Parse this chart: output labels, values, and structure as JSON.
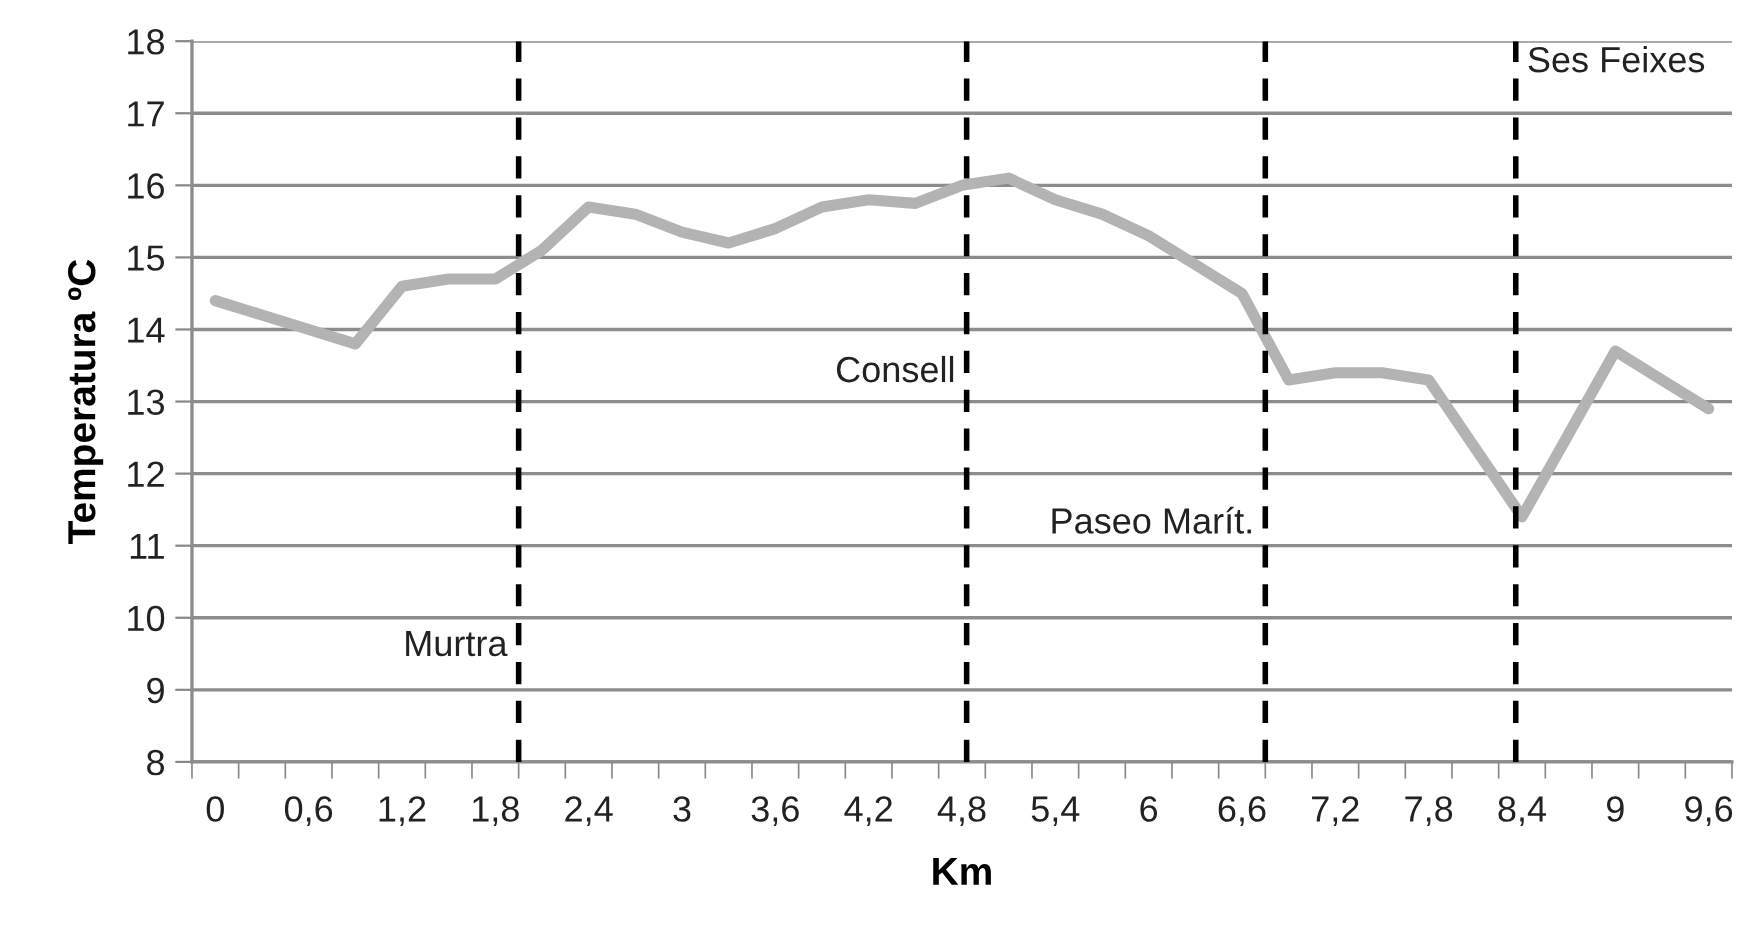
{
  "chart_data": {
    "type": "line",
    "xlabel": "Km",
    "ylabel": "Temperatura ºC",
    "x": [
      0,
      0.3,
      0.6,
      0.9,
      1.2,
      1.5,
      1.8,
      2.1,
      2.4,
      2.7,
      3.0,
      3.3,
      3.6,
      3.9,
      4.2,
      4.5,
      4.8,
      5.1,
      5.4,
      5.7,
      6.0,
      6.3,
      6.6,
      6.9,
      7.2,
      7.5,
      7.8,
      8.1,
      8.4,
      8.7,
      9.0,
      9.3,
      9.6
    ],
    "series": [
      {
        "color": "#b3b3b3",
        "values": [
          14.4,
          14.2,
          14.0,
          13.8,
          14.6,
          14.7,
          14.7,
          15.1,
          15.7,
          15.6,
          15.35,
          15.2,
          15.4,
          15.7,
          15.8,
          15.75,
          16.0,
          16.1,
          15.8,
          15.6,
          15.3,
          14.9,
          14.5,
          13.3,
          13.4,
          13.4,
          13.3,
          12.35,
          11.4,
          12.55,
          13.7,
          13.3,
          12.9
        ]
      }
    ],
    "xlim": [
      -0.15,
      9.75
    ],
    "xticks": [
      {
        "value": 0,
        "label": "0"
      },
      {
        "value": 0.6,
        "label": "0,6"
      },
      {
        "value": 1.2,
        "label": "1,2"
      },
      {
        "value": 1.8,
        "label": "1,8"
      },
      {
        "value": 2.4,
        "label": "2,4"
      },
      {
        "value": 3,
        "label": "3"
      },
      {
        "value": 3.6,
        "label": "3,6"
      },
      {
        "value": 4.2,
        "label": "4,2"
      },
      {
        "value": 4.8,
        "label": "4,8"
      },
      {
        "value": 5.4,
        "label": "5,4"
      },
      {
        "value": 6,
        "label": "6"
      },
      {
        "value": 6.6,
        "label": "6,6"
      },
      {
        "value": 7.2,
        "label": "7,2"
      },
      {
        "value": 7.8,
        "label": "7,8"
      },
      {
        "value": 8.4,
        "label": "8,4"
      },
      {
        "value": 9,
        "label": "9"
      },
      {
        "value": 9.6,
        "label": "9,6"
      },
      {
        "value": -0.15,
        "label": null
      },
      {
        "value": 0.15,
        "label": null
      },
      {
        "value": 0.45,
        "label": null
      },
      {
        "value": 0.75,
        "label": null
      },
      {
        "value": 1.05,
        "label": null
      },
      {
        "value": 1.35,
        "label": null
      },
      {
        "value": 1.65,
        "label": null
      },
      {
        "value": 1.95,
        "label": null
      },
      {
        "value": 2.25,
        "label": null
      },
      {
        "value": 2.55,
        "label": null
      },
      {
        "value": 2.85,
        "label": null
      },
      {
        "value": 3.15,
        "label": null
      },
      {
        "value": 3.45,
        "label": null
      },
      {
        "value": 3.75,
        "label": null
      },
      {
        "value": 4.05,
        "label": null
      },
      {
        "value": 4.35,
        "label": null
      },
      {
        "value": 4.65,
        "label": null
      },
      {
        "value": 4.95,
        "label": null
      },
      {
        "value": 5.25,
        "label": null
      },
      {
        "value": 5.55,
        "label": null
      },
      {
        "value": 5.85,
        "label": null
      },
      {
        "value": 6.15,
        "label": null
      },
      {
        "value": 6.45,
        "label": null
      },
      {
        "value": 6.75,
        "label": null
      },
      {
        "value": 7.05,
        "label": null
      },
      {
        "value": 7.35,
        "label": null
      },
      {
        "value": 7.65,
        "label": null
      },
      {
        "value": 7.95,
        "label": null
      },
      {
        "value": 8.25,
        "label": null
      },
      {
        "value": 8.55,
        "label": null
      },
      {
        "value": 8.85,
        "label": null
      },
      {
        "value": 9.15,
        "label": null
      },
      {
        "value": 9.45,
        "label": null
      },
      {
        "value": 9.75,
        "label": null
      }
    ],
    "ylim": [
      8,
      18
    ],
    "yticks": [
      8,
      9,
      10,
      11,
      12,
      13,
      14,
      15,
      16,
      17,
      18
    ],
    "grid": "y",
    "marker": "none",
    "line_style": "solid",
    "ref_lines": [
      {
        "axis": "x",
        "value": 1.95,
        "label": "Murtra",
        "color": "#000000",
        "line_style": "dashed"
      },
      {
        "axis": "x",
        "value": 4.83,
        "label": "Consell",
        "color": "#000000",
        "line_style": "dashed"
      },
      {
        "axis": "x",
        "value": 6.75,
        "label": "Paseo Marít.",
        "color": "#000000",
        "line_style": "dashed"
      },
      {
        "axis": "x",
        "value": 8.36,
        "label": "Ses Feixes",
        "color": "#000000",
        "line_style": "dashed"
      }
    ]
  }
}
